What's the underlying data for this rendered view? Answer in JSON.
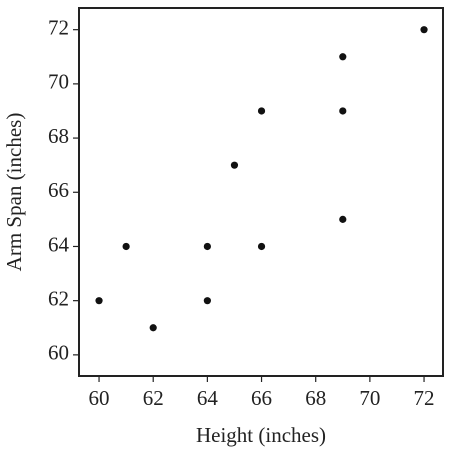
{
  "chart_data": {
    "type": "scatter",
    "xlabel": "Height (inches)",
    "ylabel": "Arm Span (inches)",
    "x": [
      60,
      61,
      62,
      64,
      64,
      65,
      66,
      66,
      69,
      69,
      69,
      72
    ],
    "series": [
      {
        "values": [
          62,
          64,
          61,
          64,
          62,
          67,
          69,
          64,
          71,
          69,
          65,
          72
        ],
        "color": "#111111"
      }
    ],
    "xlim": [
      59.26,
      72.7
    ],
    "ylim": [
      59.22,
      72.8
    ],
    "xticks": [
      60,
      62,
      64,
      66,
      68,
      70,
      72
    ],
    "yticks": [
      60,
      62,
      64,
      66,
      68,
      70,
      72
    ]
  }
}
